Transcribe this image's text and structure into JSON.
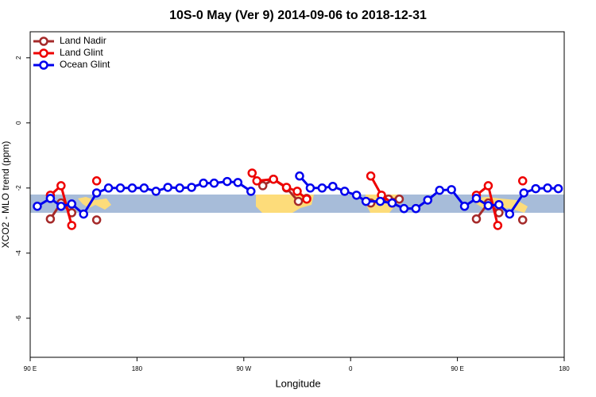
{
  "chart_data": {
    "type": "line",
    "title": "10S-0 May (Ver 9)   2014-09-06 to 2018-12-31",
    "xlabel": "Longitude",
    "ylabel": "XCO2 - MLO trend (ppm)",
    "xlim": [
      90,
      540
    ],
    "ylim": [
      -7.2,
      2.8
    ],
    "xticks": [
      {
        "value": 90,
        "label": "90 E"
      },
      180,
      {
        "value": 270,
        "label": "90 W"
      },
      {
        "value": 360,
        "label": "0"
      },
      {
        "value": 450,
        "label": "90 E"
      },
      {
        "value": 540,
        "label": "180"
      }
    ],
    "yticks": [
      2,
      0,
      -2,
      -4,
      -6
    ],
    "legend": "top-left",
    "series": [
      {
        "name": "Land Nadir",
        "color": "#a52a2a",
        "x": [
          107,
          116,
          125,
          null,
          146,
          null,
          286,
          295,
          306,
          316,
          323,
          null,
          377,
          392,
          401,
          null,
          466,
          476,
          485,
          null,
          505
        ],
        "values": [
          -2.95,
          -2.46,
          -2.76,
          null,
          -2.98,
          null,
          -1.93,
          -1.73,
          -2.0,
          -2.41,
          -2.32,
          null,
          -2.46,
          -2.34,
          -2.34,
          null,
          -2.95,
          -2.46,
          -2.76,
          null,
          -2.98
        ]
      },
      {
        "name": "Land Glint",
        "color": "#ee0000",
        "x": [
          107,
          116,
          125,
          null,
          146,
          null,
          277,
          281,
          295,
          306,
          315,
          323,
          null,
          377,
          386,
          395,
          null,
          466,
          476,
          484,
          null,
          505
        ],
        "values": [
          -2.22,
          -1.93,
          -3.15,
          null,
          -1.78,
          null,
          -1.54,
          -1.78,
          -1.73,
          -1.98,
          -2.1,
          -2.34,
          null,
          -1.63,
          -2.22,
          -2.46,
          null,
          -2.22,
          -1.93,
          -3.15,
          null,
          -1.78
        ]
      },
      {
        "name": "Ocean Glint",
        "color": "#0000ee",
        "x": [
          96,
          107,
          116,
          125,
          135,
          146,
          156,
          166,
          176,
          186,
          196,
          206,
          216,
          226,
          236,
          245,
          256,
          265,
          276,
          null,
          317,
          326,
          336,
          345,
          355,
          365,
          373,
          385,
          395,
          405,
          415,
          425,
          435,
          445,
          456,
          466,
          476,
          485,
          494,
          506,
          516,
          526,
          535
        ],
        "values": [
          -2.56,
          -2.32,
          -2.56,
          -2.49,
          -2.8,
          -2.15,
          -2.0,
          -2.0,
          -2.0,
          -2.0,
          -2.1,
          -1.98,
          -2.0,
          -1.98,
          -1.85,
          -1.85,
          -1.8,
          -1.83,
          -2.1,
          null,
          -1.63,
          -2.0,
          -2.0,
          -1.95,
          -2.1,
          -2.22,
          -2.41,
          -2.41,
          -2.46,
          -2.63,
          -2.63,
          -2.37,
          -2.07,
          -2.05,
          -2.56,
          -2.32,
          -2.54,
          -2.51,
          -2.8,
          -2.15,
          -2.02,
          -2.0,
          -2.02
        ]
      }
    ]
  }
}
